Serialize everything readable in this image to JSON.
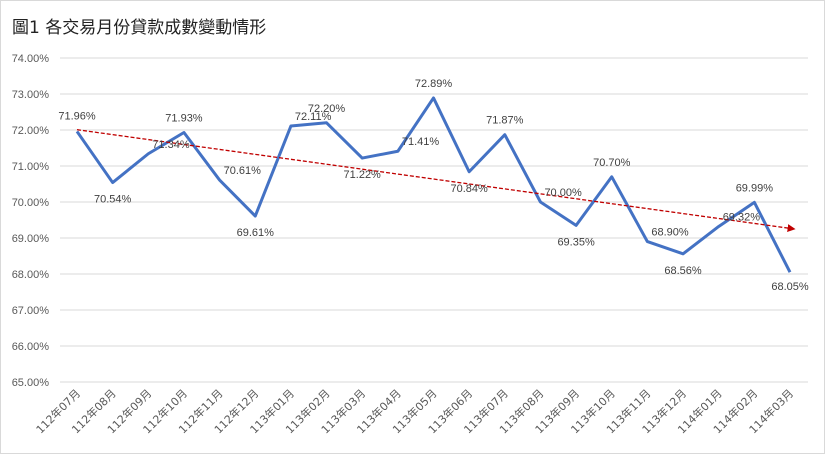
{
  "chart_data": {
    "type": "line",
    "title": "圖1 各交易月份貸款成數變動情形",
    "xlabel": "",
    "ylabel": "",
    "categories": [
      "112年07月",
      "112年08月",
      "112年09月",
      "112年10月",
      "112年11月",
      "112年12月",
      "113年01月",
      "113年02月",
      "113年03月",
      "113年04月",
      "113年05月",
      "113年06月",
      "113年07月",
      "113年08月",
      "113年09月",
      "113年10月",
      "113年11月",
      "113年12月",
      "114年01月",
      "114年02月",
      "114年03月"
    ],
    "series": [
      {
        "values": [
          71.96,
          70.54,
          71.34,
          71.93,
          70.61,
          69.61,
          72.11,
          72.2,
          71.22,
          71.41,
          72.89,
          70.84,
          71.87,
          70.0,
          69.35,
          70.7,
          68.9,
          68.56,
          69.32,
          69.99,
          68.05
        ],
        "labels": [
          "71.96%",
          "70.54%",
          "71.34%",
          "71.93%",
          "70.61%",
          "69.61%",
          "72.11%",
          "72.20%",
          "71.22%",
          "71.41%",
          "72.89%",
          "70.84%",
          "71.87%",
          "70.00%",
          "69.35%",
          "70.70%",
          "68.90%",
          "68.56%",
          "69.32%",
          "69.99%",
          "68.05%"
        ],
        "color": "#4472c4"
      }
    ],
    "trendline": {
      "color": "#c00000",
      "style": "dashed-arrow"
    },
    "ylim": [
      65,
      74
    ],
    "yticks": [
      "65.00%",
      "66.00%",
      "67.00%",
      "68.00%",
      "69.00%",
      "70.00%",
      "71.00%",
      "72.00%",
      "73.00%",
      "74.00%"
    ],
    "grid": true,
    "legend": "none"
  }
}
